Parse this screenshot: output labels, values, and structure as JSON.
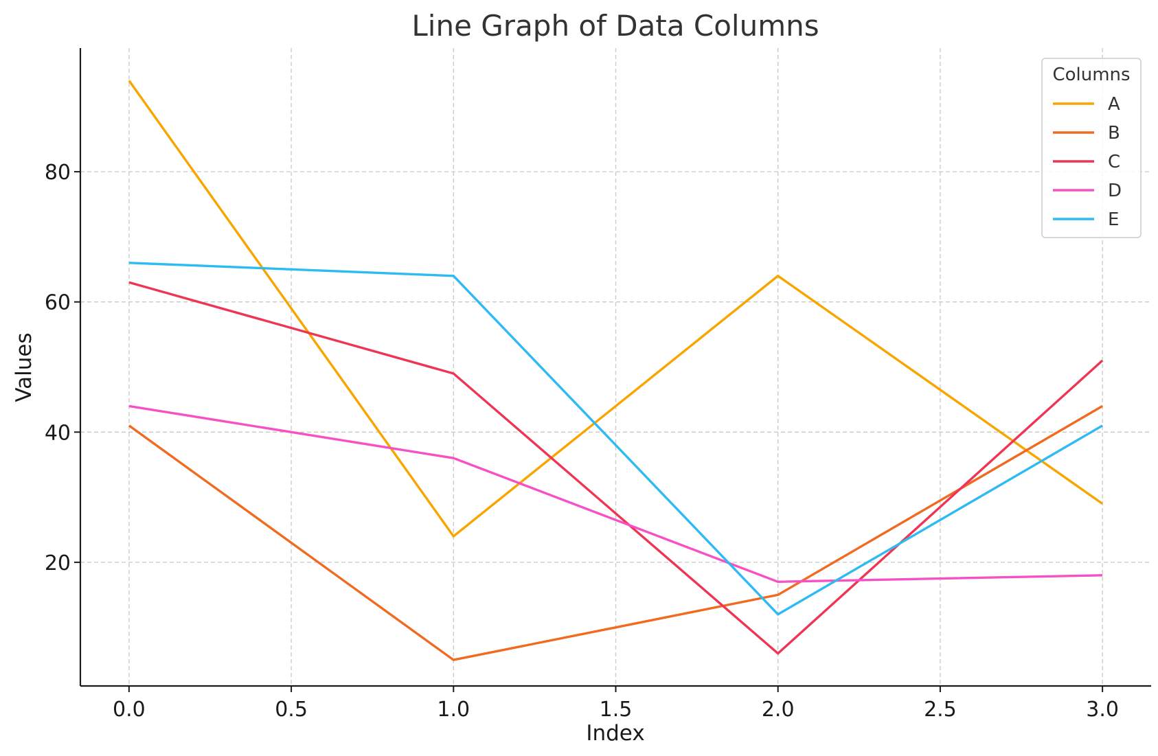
{
  "chart_data": {
    "type": "line",
    "title": "Line Graph of Data Columns",
    "xlabel": "Index",
    "ylabel": "Values",
    "x": [
      0,
      1,
      2,
      3
    ],
    "xlim": [
      -0.15,
      3.15
    ],
    "ylim": [
      1.0,
      99.0
    ],
    "xticks": [
      "0.0",
      "0.5",
      "1.0",
      "1.5",
      "2.0",
      "2.5",
      "3.0"
    ],
    "xtick_values": [
      0,
      0.5,
      1.0,
      1.5,
      2.0,
      2.5,
      3.0
    ],
    "yticks": [
      "20",
      "40",
      "60",
      "80"
    ],
    "ytick_values": [
      20,
      40,
      60,
      80
    ],
    "grid": true,
    "legend": {
      "title": "Columns",
      "placement": "top-right"
    },
    "series": [
      {
        "name": "A",
        "color": "#f8a500",
        "values": [
          94,
          24,
          64,
          29
        ]
      },
      {
        "name": "B",
        "color": "#f06a20",
        "values": [
          41,
          5,
          15,
          44
        ]
      },
      {
        "name": "C",
        "color": "#ee3553",
        "values": [
          63,
          49,
          6,
          51
        ]
      },
      {
        "name": "D",
        "color": "#f750c5",
        "values": [
          44,
          36,
          17,
          18
        ]
      },
      {
        "name": "E",
        "color": "#2ebaf3",
        "values": [
          66,
          64,
          12,
          41
        ]
      }
    ]
  }
}
